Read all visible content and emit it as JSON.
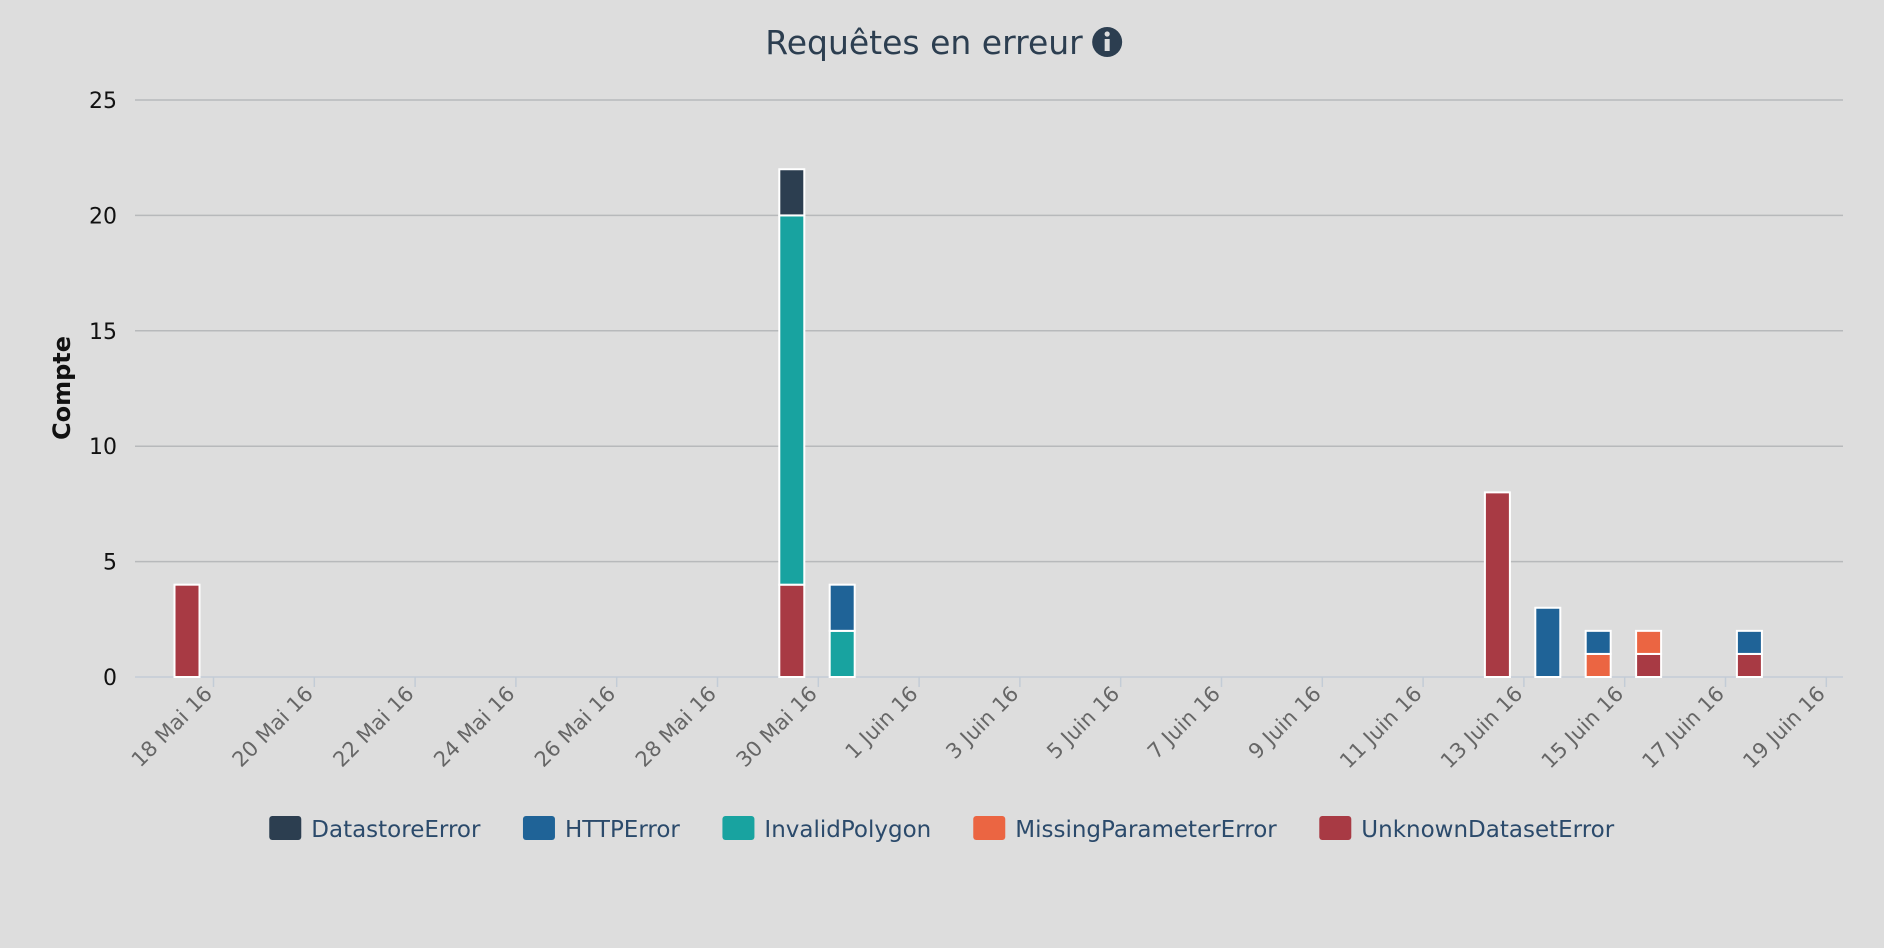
{
  "title": "Requêtes en erreur",
  "title_icon": "info-circle-icon",
  "chart_data": {
    "type": "bar",
    "stacked": true,
    "title": "Requêtes en erreur",
    "xlabel": "",
    "ylabel": "Compte",
    "ylim": [
      0,
      25
    ],
    "yticks": [
      0,
      5,
      10,
      15,
      20,
      25
    ],
    "grid": true,
    "legend_position": "bottom",
    "x_tick_labels": [
      "18 Mai 16",
      "20 Mai 16",
      "22 Mai 16",
      "24 Mai 16",
      "26 Mai 16",
      "28 Mai 16",
      "30 Mai 16",
      "1 Juin 16",
      "3 Juin 16",
      "5 Juin 16",
      "7 Juin 16",
      "9 Juin 16",
      "11 Juin 16",
      "13 Juin 16",
      "15 Juin 16",
      "17 Juin 16",
      "19 Juin 16"
    ],
    "x_range": [
      "2016-05-17",
      "2016-06-19"
    ],
    "categories": [
      "2016-05-17",
      "2016-05-29",
      "2016-05-30",
      "2016-06-12",
      "2016-06-13",
      "2016-06-14",
      "2016-06-15",
      "2016-06-17"
    ],
    "series": [
      {
        "name": "DatastoreError",
        "color": "#2c3e50",
        "values": [
          0,
          2,
          0,
          0,
          0,
          0,
          0,
          0
        ]
      },
      {
        "name": "HTTPError",
        "color": "#1f6397",
        "values": [
          0,
          0,
          2,
          0,
          3,
          1,
          0,
          1
        ]
      },
      {
        "name": "InvalidPolygon",
        "color": "#18a3a0",
        "values": [
          0,
          16,
          2,
          0,
          0,
          0,
          0,
          0
        ]
      },
      {
        "name": "MissingParameterError",
        "color": "#eb6542",
        "values": [
          0,
          0,
          0,
          0,
          0,
          1,
          1,
          0
        ]
      },
      {
        "name": "UnknownDatasetError",
        "color": "#a83a44",
        "values": [
          4,
          4,
          0,
          8,
          0,
          0,
          1,
          1
        ]
      }
    ]
  }
}
